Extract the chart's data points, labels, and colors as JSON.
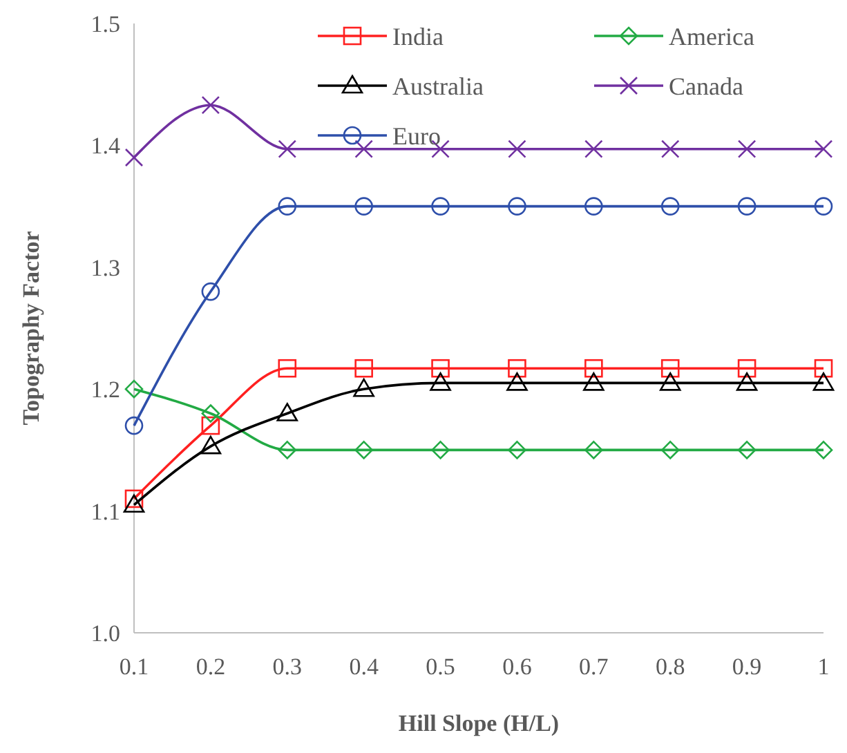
{
  "chart_data": {
    "type": "line",
    "xlabel": "Hill Slope (H/L)",
    "ylabel": "Topography Factor",
    "categories": [
      "0.1",
      "0.2",
      "0.3",
      "0.4",
      "0.5",
      "0.6",
      "0.7",
      "0.8",
      "0.9",
      "1"
    ],
    "ylim": [
      1.0,
      1.5
    ],
    "yticks": [
      {
        "value": 1.0,
        "label": "1.0"
      },
      1.1,
      1.2,
      1.3,
      1.4,
      1.5
    ],
    "grid": false,
    "legend": "top right",
    "series": [
      {
        "name": "India",
        "color": "#ff2020",
        "marker": "square",
        "values": [
          1.11,
          1.17,
          1.217,
          1.217,
          1.217,
          1.217,
          1.217,
          1.217,
          1.217,
          1.217
        ]
      },
      {
        "name": "America",
        "color": "#22aa44",
        "marker": "diamond",
        "values": [
          1.2,
          1.18,
          1.15,
          1.15,
          1.15,
          1.15,
          1.15,
          1.15,
          1.15,
          1.15
        ]
      },
      {
        "name": "Australia",
        "color": "#000000",
        "marker": "triangle",
        "values": [
          1.105,
          1.153,
          1.18,
          1.2,
          1.205,
          1.205,
          1.205,
          1.205,
          1.205,
          1.205
        ]
      },
      {
        "name": "Canada",
        "color": "#7030a0",
        "marker": "cross",
        "values": [
          1.39,
          1.433,
          1.397,
          1.397,
          1.397,
          1.397,
          1.397,
          1.397,
          1.397,
          1.397
        ]
      },
      {
        "name": "Euro",
        "color": "#2e4faa",
        "marker": "circle",
        "values": [
          1.17,
          1.28,
          1.35,
          1.35,
          1.35,
          1.35,
          1.35,
          1.35,
          1.35,
          1.35
        ]
      }
    ]
  }
}
